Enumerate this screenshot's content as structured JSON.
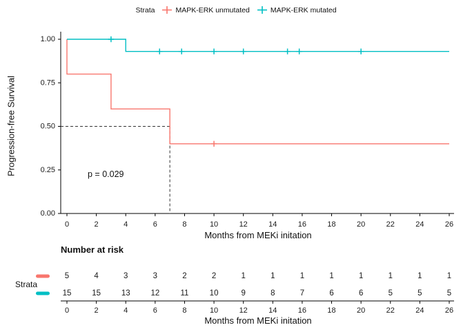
{
  "legend": {
    "title": "Strata",
    "items": [
      {
        "label": "MAPK-ERK unmutated",
        "color": "#F8766D"
      },
      {
        "label": "MAPK-ERK mutated",
        "color": "#00BFC4"
      }
    ]
  },
  "chart_data": {
    "type": "line",
    "subtype": "kaplan-meier-step",
    "title": "",
    "xlabel": "Months from MEKi initation",
    "ylabel": "Progression-free Survival",
    "xlim": [
      0,
      26
    ],
    "ylim": [
      0,
      1
    ],
    "grid": false,
    "legend_position": "top",
    "xticks": [
      0,
      2,
      4,
      6,
      8,
      10,
      12,
      14,
      16,
      18,
      20,
      22,
      24,
      26
    ],
    "yticks": [
      0,
      0.25,
      0.5,
      0.75,
      1.0
    ],
    "ytick_labels": [
      "0.00",
      "0.25",
      "0.50",
      "0.75",
      "1.00"
    ],
    "series": [
      {
        "name": "MAPK-ERK unmutated",
        "color": "#F8766D",
        "start_survival": 1.0,
        "steps": [
          {
            "time": 0,
            "survival": 0.8
          },
          {
            "time": 3,
            "survival": 0.6
          },
          {
            "time": 7,
            "survival": 0.4
          }
        ],
        "end_time": 26,
        "censor_marks": [
          {
            "time": 10,
            "survival": 0.4
          }
        ]
      },
      {
        "name": "MAPK-ERK mutated",
        "color": "#00BFC4",
        "start_survival": 1.0,
        "steps": [
          {
            "time": 4,
            "survival": 0.93
          }
        ],
        "end_time": 26,
        "censor_marks": [
          {
            "time": 3,
            "survival": 1.0
          },
          {
            "time": 6.3,
            "survival": 0.93
          },
          {
            "time": 7.8,
            "survival": 0.93
          },
          {
            "time": 10,
            "survival": 0.93
          },
          {
            "time": 12,
            "survival": 0.93
          },
          {
            "time": 15,
            "survival": 0.93
          },
          {
            "time": 15.8,
            "survival": 0.93
          },
          {
            "time": 20,
            "survival": 0.93
          }
        ]
      }
    ],
    "reference_lines": {
      "style": "dashed",
      "horizontal_y": 0.5,
      "vertical_x": 7
    },
    "annotation": {
      "text": "p = 0.029"
    }
  },
  "risk_table": {
    "title": "Number at risk",
    "ylabel": "Strata",
    "xlabel": "Months from MEKi initation",
    "xticks": [
      0,
      2,
      4,
      6,
      8,
      10,
      12,
      14,
      16,
      18,
      20,
      22,
      24,
      26
    ],
    "rows": [
      {
        "name": "MAPK-ERK unmutated",
        "color": "#F8766D",
        "counts": [
          5,
          4,
          3,
          3,
          2,
          2,
          1,
          1,
          1,
          1,
          1,
          1,
          1,
          1
        ]
      },
      {
        "name": "MAPK-ERK mutated",
        "color": "#00BFC4",
        "counts": [
          15,
          15,
          13,
          12,
          11,
          10,
          9,
          8,
          7,
          6,
          6,
          5,
          5,
          5
        ]
      }
    ]
  }
}
